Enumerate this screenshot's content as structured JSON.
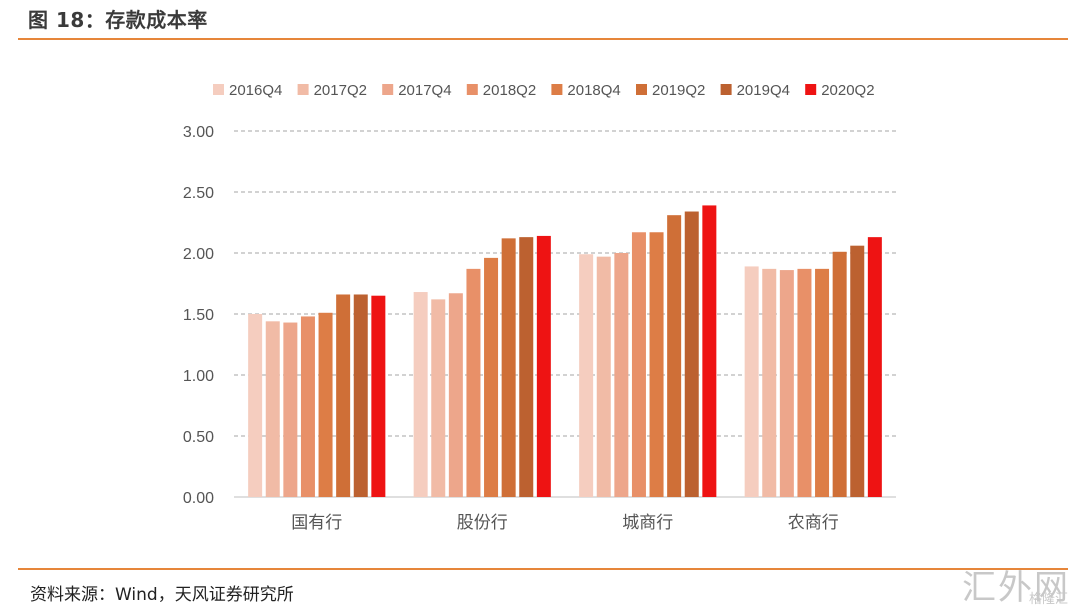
{
  "figure": {
    "title": "图 18：存款成本率",
    "source": "资料来源：Wind，天风证券研究所"
  },
  "watermark": {
    "main": "汇外网",
    "sub": "格隆汇"
  },
  "chart_data": {
    "type": "bar",
    "title": "",
    "xlabel": "",
    "ylabel": "",
    "ylim": [
      0,
      3.0
    ],
    "yticks": [
      "0.00",
      "0.50",
      "1.00",
      "1.50",
      "2.00",
      "2.50",
      "3.00"
    ],
    "grid": true,
    "legend_position": "top",
    "categories": [
      "国有行",
      "股份行",
      "城商行",
      "农商行"
    ],
    "series": [
      {
        "name": "2016Q4",
        "color": "#f5cdbf",
        "values": [
          1.5,
          1.68,
          1.99,
          1.89
        ]
      },
      {
        "name": "2017Q2",
        "color": "#f1bba6",
        "values": [
          1.44,
          1.62,
          1.97,
          1.87
        ]
      },
      {
        "name": "2017Q4",
        "color": "#eda68b",
        "values": [
          1.43,
          1.67,
          2.0,
          1.86
        ]
      },
      {
        "name": "2018Q2",
        "color": "#e89068",
        "values": [
          1.48,
          1.87,
          2.17,
          1.87
        ]
      },
      {
        "name": "2018Q4",
        "color": "#dd7d46",
        "values": [
          1.51,
          1.96,
          2.17,
          1.87
        ]
      },
      {
        "name": "2019Q2",
        "color": "#cf6f37",
        "values": [
          1.66,
          2.12,
          2.31,
          2.01
        ]
      },
      {
        "name": "2019Q4",
        "color": "#bc6130",
        "values": [
          1.66,
          2.13,
          2.34,
          2.06
        ]
      },
      {
        "name": "2020Q2",
        "color": "#ee1313",
        "values": [
          1.65,
          2.14,
          2.39,
          2.13
        ]
      }
    ]
  }
}
